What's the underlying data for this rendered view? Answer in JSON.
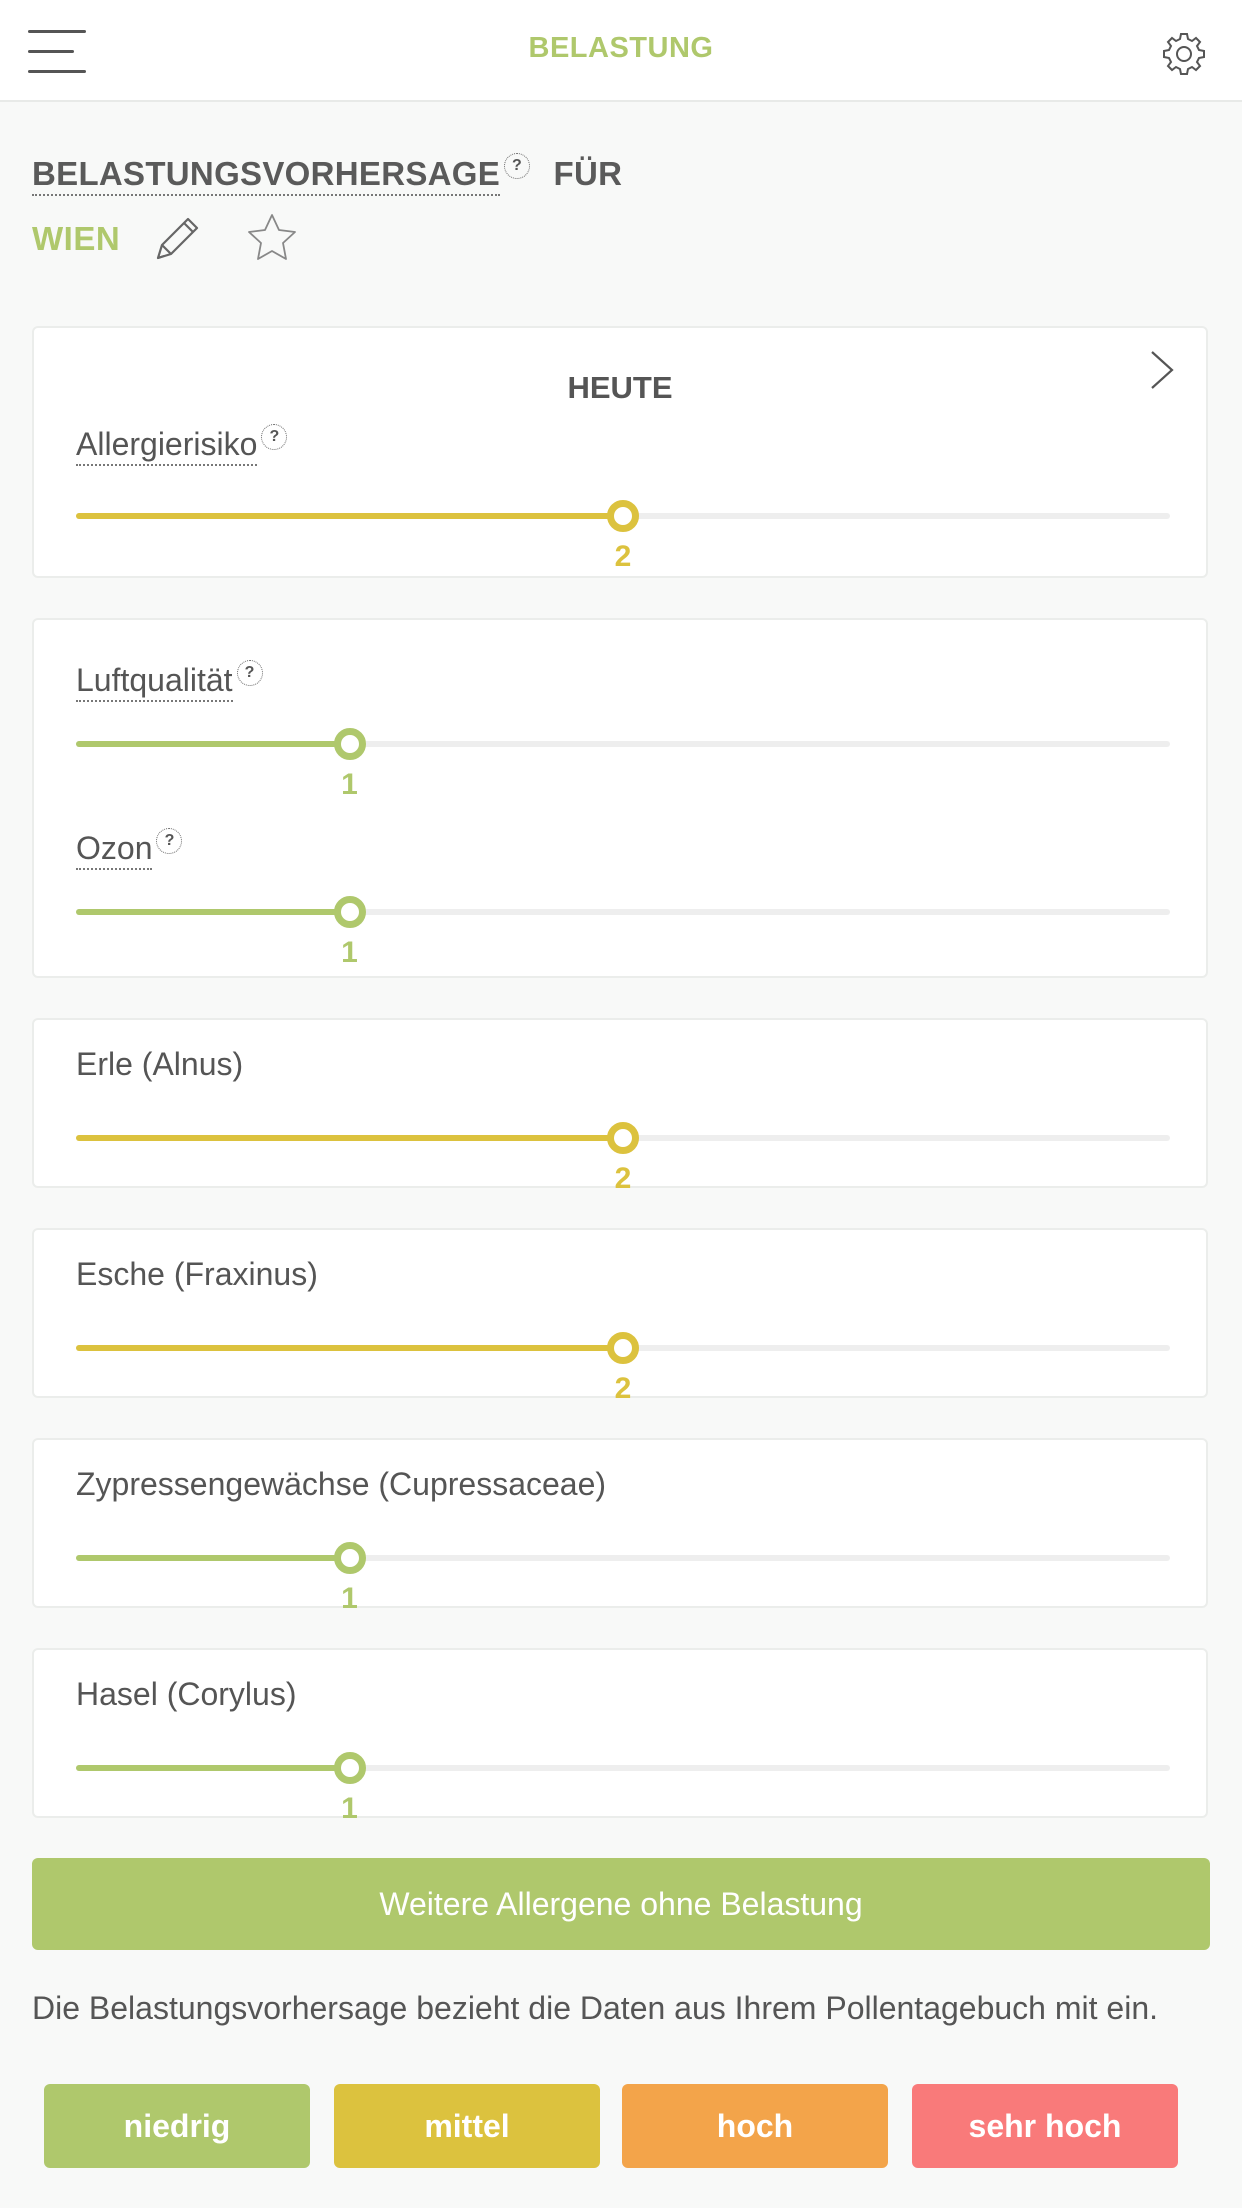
{
  "header": {
    "title": "BELASTUNG"
  },
  "forecast": {
    "heading": "BELASTUNGSVORHERSAGE",
    "heading_suffix": "FÜR",
    "help": "?",
    "city": "WIEN"
  },
  "day_card": {
    "title": "HEUTE"
  },
  "scale_max": 4,
  "colors": {
    "niedrig": "#afc86c",
    "mittel": "#dcc23e",
    "hoch": "#f3a44a",
    "sehr_hoch": "#f97a7a"
  },
  "rows": [
    {
      "label": "Allergierisiko",
      "help": "?",
      "value": 2,
      "display": "2",
      "level": "mittel"
    },
    {
      "label": "Luftqualität",
      "help": "?",
      "value": 1,
      "display": "1",
      "level": "niedrig"
    },
    {
      "label": "Ozon",
      "help": "?",
      "value": 1,
      "display": "1",
      "level": "niedrig"
    },
    {
      "label": "Erle (Alnus)",
      "value": 2,
      "display": "2",
      "level": "mittel"
    },
    {
      "label": "Esche (Fraxinus)",
      "value": 2,
      "display": "2",
      "level": "mittel"
    },
    {
      "label": "Zypressengewächse (Cupressaceae)",
      "value": 1,
      "display": "1",
      "level": "niedrig"
    },
    {
      "label": "Hasel (Corylus)",
      "value": 1,
      "display": "1",
      "level": "niedrig"
    }
  ],
  "more_button": "Weitere Allergene ohne Belastung",
  "info_text": "Die Belastungsvorhersage bezieht die Daten aus Ihrem Pollentagebuch mit ein.",
  "legend": [
    {
      "label": "niedrig",
      "color": "#afc86c"
    },
    {
      "label": "mittel",
      "color": "#dcc23e"
    },
    {
      "label": "hoch",
      "color": "#f3a44a"
    },
    {
      "label": "sehr hoch",
      "color": "#f97a7a"
    }
  ],
  "icons": {
    "menu": "hamburger-menu-icon",
    "settings": "gear-icon",
    "edit": "pencil-icon",
    "favorite": "star-outline-icon",
    "next": "chevron-right-icon"
  }
}
